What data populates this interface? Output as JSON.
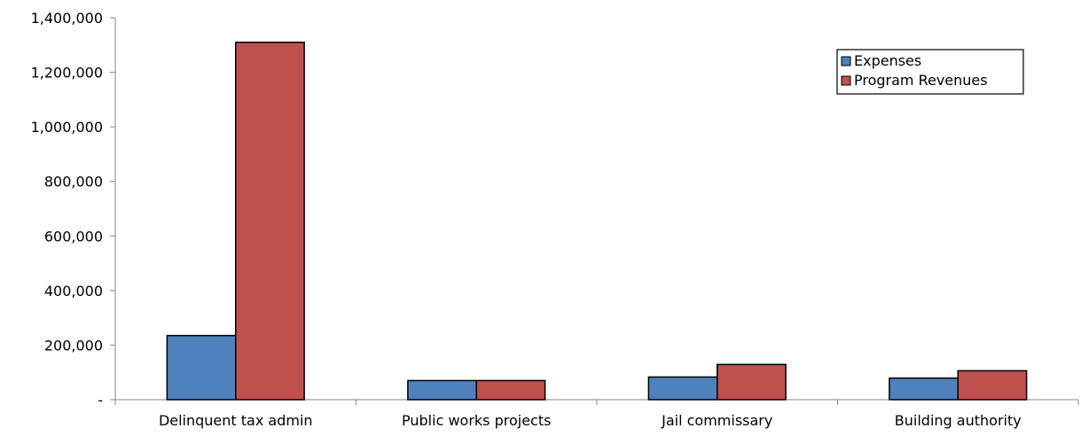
{
  "chart_data": {
    "type": "bar",
    "title": "",
    "xlabel": "",
    "ylabel": "",
    "categories": [
      "Delinquent tax admin",
      "Public works projects",
      "Jail commissary",
      "Building authority"
    ],
    "series": [
      {
        "name": "Expenses",
        "color": "#4f81bd",
        "values": [
          235000,
          70000,
          83000,
          79000
        ]
      },
      {
        "name": "Program Revenues",
        "color": "#c0504d",
        "values": [
          1310000,
          70000,
          129000,
          106000
        ]
      }
    ],
    "ylim": [
      0,
      1400000
    ],
    "yticks": [
      0,
      200000,
      400000,
      600000,
      800000,
      1000000,
      1200000,
      1400000
    ],
    "ytick_labels": [
      "-",
      "200,000",
      "400,000",
      "600,000",
      "800,000",
      "1,000,000",
      "1,200,000",
      "1,400,000"
    ],
    "grid": false,
    "legend_position": "top-right"
  }
}
